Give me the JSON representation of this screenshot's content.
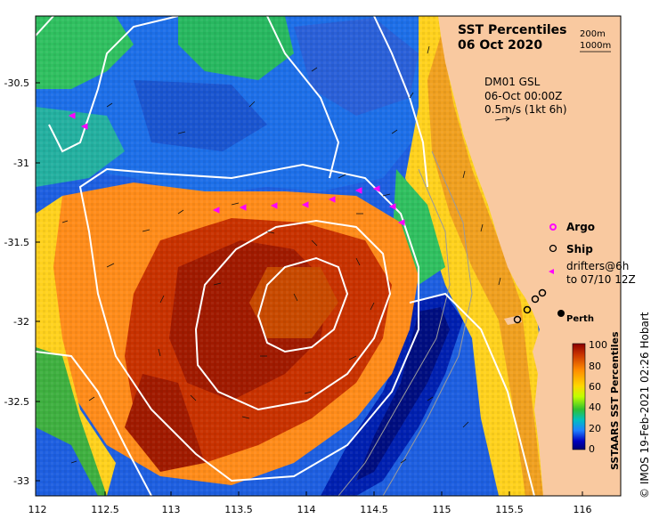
{
  "title": {
    "line1": "SST Percentiles",
    "line2": "06 Oct 2020"
  },
  "depth_legend": [
    "200m",
    "1000m"
  ],
  "current_info": {
    "source": "DM01 GSL",
    "time": "06-Oct 00:00Z",
    "scale": "0.5m/s (1kt 6h)"
  },
  "legend": {
    "argo": {
      "symbol": "o",
      "label": "Argo",
      "color": "#ff00ff"
    },
    "ship": {
      "symbol": "o",
      "label": "Ship",
      "color": "#000000"
    },
    "drifters": {
      "symbol": "<",
      "label_line1": "drifters@6h",
      "label_line2": "to 07/10 12Z",
      "color": "#ff00ff"
    }
  },
  "place_labels": [
    {
      "name": "Perth",
      "lon": 115.86,
      "lat": -31.95
    }
  ],
  "colorbar": {
    "label": "SSTAARS SST Percentiles",
    "ticks": [
      "100",
      "80",
      "60",
      "40",
      "20",
      "0"
    ],
    "colors": [
      "#8b0000",
      "#c83200",
      "#ff8c00",
      "#ffd700",
      "#c0ff00",
      "#30c030",
      "#00c0c0",
      "#1e7fff",
      "#0000c0",
      "#000070"
    ]
  },
  "axes": {
    "x_ticks": [
      "112",
      "112.5",
      "113",
      "113.5",
      "114",
      "114.5",
      "115",
      "115.5",
      "116"
    ],
    "y_ticks": [
      "-30.5",
      "-31",
      "-31.5",
      "-32",
      "-32.5",
      "-33"
    ],
    "xlim": [
      112,
      116.3
    ],
    "ylim": [
      -33.1,
      -30.1
    ]
  },
  "credit": "© IMOS 19-Feb-2021 02:26 Hobart",
  "colors": {
    "land": "#f9c9a0",
    "contour": "#ffffff",
    "bathy": "#9a9a9a"
  }
}
